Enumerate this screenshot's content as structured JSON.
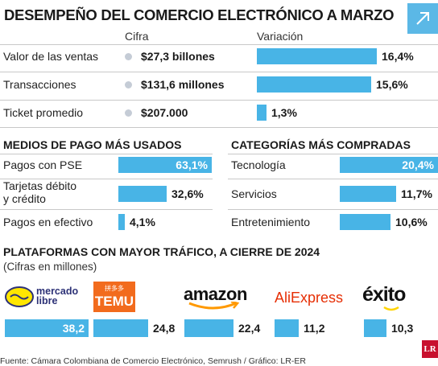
{
  "title": "DESEMPEÑO DEL COMERCIO ELECTRÓNICO A MARZO",
  "colors": {
    "accent": "#48b4e6",
    "dot": "#c5ccd6",
    "brand_lr": "#c8102e"
  },
  "icons": {
    "corner": "arrow-up-right-icon"
  },
  "chart_data": [
    {
      "type": "table",
      "column_headers": [
        "Cifra",
        "Variación"
      ],
      "rows": [
        {
          "label": "Valor de las ventas",
          "cifra": "$27,3 billones",
          "variacion": 16.4,
          "variacion_label": "16,4%"
        },
        {
          "label": "Transacciones",
          "cifra": "$131,6 millones",
          "variacion": 15.6,
          "variacion_label": "15,6%"
        },
        {
          "label": "Ticket promedio",
          "cifra": "$207.000",
          "variacion": 1.3,
          "variacion_label": "1,3%"
        }
      ]
    },
    {
      "type": "bar",
      "title": "MEDIOS DE PAGO MÁS USADOS",
      "categories": [
        "Pagos con PSE",
        "Tarjetas débito y crédito",
        "Pagos en efectivo"
      ],
      "category_lines": [
        [
          "Pagos con PSE"
        ],
        [
          "Tarjetas débito",
          "y crédito"
        ],
        [
          "Pagos en efectivo"
        ]
      ],
      "values": [
        63.1,
        32.6,
        4.1
      ],
      "labels": [
        "63,1%",
        "32,6%",
        "4,1%"
      ]
    },
    {
      "type": "bar",
      "title": "CATEGORÍAS MÁS COMPRADAS",
      "categories": [
        "Tecnología",
        "Servicios",
        "Entretenimiento"
      ],
      "values": [
        20.4,
        11.7,
        10.6
      ],
      "labels": [
        "20,4%",
        "11,7%",
        "10,6%"
      ]
    },
    {
      "type": "bar",
      "title": "PLATAFORMAS CON MAYOR TRÁFICO, A CIERRE DE 2024",
      "subtitle": "(Cifras en millones)",
      "categories": [
        "mercado libre",
        "TEMU",
        "amazon",
        "AliExpress",
        "éxito"
      ],
      "logo_text": {
        "ml_line1": "mercado",
        "ml_line2": "libre",
        "temu": "TEMU",
        "temu_small": "拼多多",
        "amazon": "amazon",
        "aliexpress": "AliExpress",
        "exito": "éxito"
      },
      "values": [
        38.2,
        24.8,
        22.4,
        11.2,
        10.3
      ],
      "labels": [
        "38,2",
        "24,8",
        "22,4",
        "11,2",
        "10,3"
      ]
    }
  ],
  "footer": {
    "source": "Fuente: Cámara Colombiana de Comercio Electrónico, Semrush / Gráfico: LR-ER",
    "brand": "LR"
  }
}
